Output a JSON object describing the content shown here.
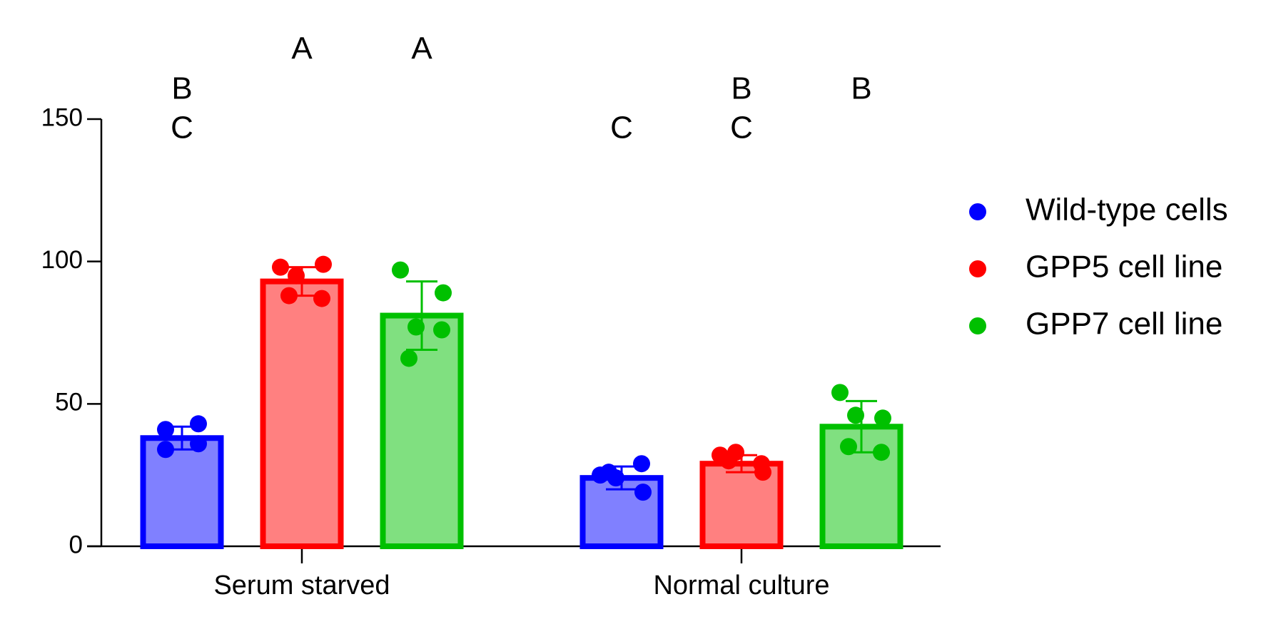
{
  "chart_data": {
    "type": "bar",
    "categories": [
      "Serum starved",
      "Normal culture"
    ],
    "ylim": [
      0,
      150
    ],
    "yticks": [
      0,
      50,
      100,
      150
    ],
    "series": [
      {
        "name": "Wild-type cells",
        "color": "#0000ff",
        "fill_color": "#8080ff",
        "values": [
          38,
          24
        ],
        "errors": [
          4,
          4
        ],
        "points": [
          [
            41,
            43,
            34,
            36
          ],
          [
            25,
            19,
            24,
            29,
            26
          ]
        ],
        "letters": [
          [
            "B",
            "C"
          ],
          [
            "C"
          ]
        ]
      },
      {
        "name": "GPP5 cell line",
        "color": "#ff0000",
        "fill_color": "#ff8080",
        "values": [
          93,
          29
        ],
        "errors": [
          5,
          3
        ],
        "points": [
          [
            98,
            99,
            95,
            87,
            88
          ],
          [
            32,
            26,
            33,
            29,
            30
          ]
        ],
        "letters": [
          [
            "A"
          ],
          [
            "B",
            "C"
          ]
        ]
      },
      {
        "name": "GPP7 cell line",
        "color": "#00c000",
        "fill_color": "#80e080",
        "values": [
          81,
          42
        ],
        "errors": [
          12,
          9
        ],
        "points": [
          [
            97,
            89,
            77,
            76,
            66
          ],
          [
            54,
            45,
            46,
            33,
            35
          ]
        ],
        "letters": [
          [
            "A"
          ],
          [
            "B"
          ]
        ]
      }
    ]
  }
}
